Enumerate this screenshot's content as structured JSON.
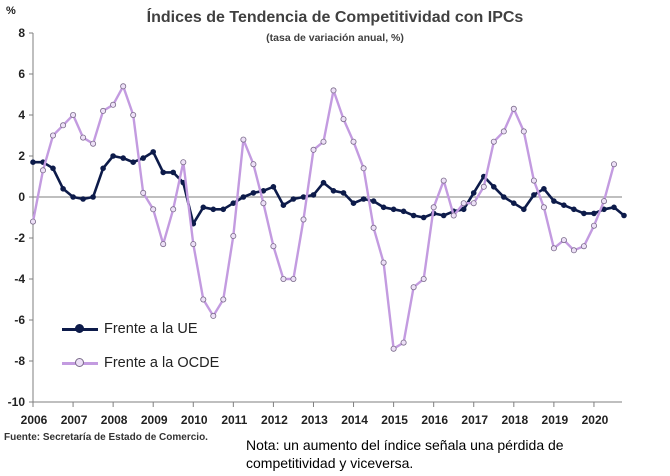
{
  "chart_data": {
    "type": "line",
    "title": "Índices de Tendencia de Competitividad  con IPCs",
    "subtitle": "(tasa de variación anual, %)",
    "ylabel": "%",
    "xlabel": "",
    "ylim": [
      -10,
      8
    ],
    "yticks": [
      8,
      6,
      4,
      2,
      0,
      -2,
      -4,
      -6,
      -8,
      -10
    ],
    "xticks": [
      "2006",
      "2007",
      "2008",
      "2009",
      "2010",
      "2011",
      "2012",
      "2013",
      "2014",
      "2015",
      "2016",
      "2017",
      "2018",
      "2019",
      "2020"
    ],
    "x_start": 2006.0,
    "x_step": 0.25,
    "grid": false,
    "legend_position": "lower-left",
    "series": [
      {
        "name": "Frente a la UE",
        "color": "#0d1b4a",
        "marker_fill": "#0d1b4a",
        "values": [
          1.7,
          1.7,
          1.4,
          0.4,
          0.0,
          -0.1,
          0.0,
          1.4,
          2.0,
          1.9,
          1.7,
          1.9,
          2.2,
          1.2,
          1.2,
          0.7,
          -1.3,
          -0.5,
          -0.6,
          -0.6,
          -0.3,
          0.0,
          0.2,
          0.3,
          0.5,
          -0.4,
          -0.1,
          0.0,
          0.1,
          0.7,
          0.3,
          0.2,
          -0.3,
          -0.1,
          -0.2,
          -0.5,
          -0.6,
          -0.7,
          -0.9,
          -1.0,
          -0.8,
          -0.9,
          -0.7,
          -0.6,
          0.2,
          1.0,
          0.5,
          0.0,
          -0.3,
          -0.6,
          0.1,
          0.4,
          -0.2,
          -0.4,
          -0.6,
          -0.8,
          -0.8,
          -0.6,
          -0.5,
          -0.9
        ]
      },
      {
        "name": "Frente a la OCDE",
        "color": "#c39be0",
        "marker_fill": "#ede0f7",
        "values": [
          -1.2,
          1.3,
          3.0,
          3.5,
          4.0,
          2.9,
          2.6,
          4.2,
          4.5,
          5.4,
          4.0,
          0.2,
          -0.6,
          -2.3,
          -0.6,
          1.7,
          -2.3,
          -5.0,
          -5.8,
          -5.0,
          -1.9,
          2.8,
          1.6,
          -0.3,
          -2.4,
          -4.0,
          -4.0,
          -1.1,
          2.3,
          2.7,
          5.2,
          3.8,
          2.7,
          1.4,
          -1.5,
          -3.2,
          -7.4,
          -7.1,
          -4.4,
          -4.0,
          -0.5,
          0.8,
          -0.9,
          -0.3,
          -0.3,
          0.5,
          2.7,
          3.2,
          4.3,
          3.2,
          0.8,
          -0.5,
          -2.5,
          -2.1,
          -2.6,
          -2.4,
          -1.4,
          -0.2,
          1.6
        ]
      }
    ]
  },
  "source": "Fuente: Secretaría de Estado de Comercio.",
  "note_line1": "Nota: un aumento del índice señala una pérdida de",
  "note_line2": "competitividad y viceversa."
}
